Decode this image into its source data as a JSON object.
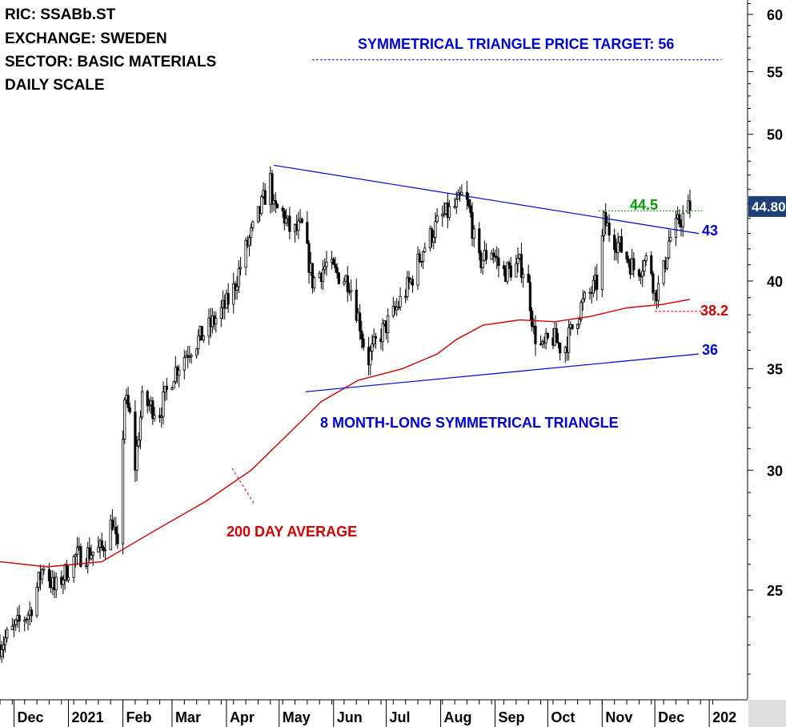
{
  "header": {
    "ric": "RIC: SSABb.ST",
    "exchange": "EXCHANGE: SWEDEN",
    "sector": "SECTOR: BASIC MATERIALS",
    "scale": "DAILY SCALE"
  },
  "annotations": {
    "price_target": "SYMMETRICAL TRIANGLE PRICE TARGET: 56",
    "pattern": "8 MONTH-LONG SYMMETRICAL TRIANGLE",
    "ma_label": "200 DAY AVERAGE",
    "level_445": "44.5",
    "level_43": "43",
    "level_382": "38.2",
    "level_36": "36",
    "last_price": "44.80"
  },
  "colors": {
    "price": "#000000",
    "trendline": "#0000cc",
    "moving_average": "#cc0000",
    "target": "#0000cc",
    "resistance": "#009900",
    "badge": "#1f3f77"
  },
  "chart_data": {
    "type": "candlestick",
    "y_scale": "log",
    "ylim": [
      21,
      62
    ],
    "y_ticks": [
      25,
      30,
      35,
      40,
      50,
      55,
      60
    ],
    "x_tick_labels": [
      "Dec",
      "2021",
      "Feb",
      "Mar",
      "Apr",
      "May",
      "Jun",
      "Jul",
      "Aug",
      "Sep",
      "Oct",
      "Nov",
      "Dec",
      "202"
    ],
    "series": [
      {
        "name": "SSABb.ST price",
        "points": [
          [
            "2020-11-23",
            23.0
          ],
          [
            "2020-12-10",
            24.2
          ],
          [
            "2020-12-18",
            26.0
          ],
          [
            "2020-12-24",
            25.0
          ],
          [
            "2021-01-05",
            26.3
          ],
          [
            "2021-01-20",
            26.6
          ],
          [
            "2021-01-26",
            27.8
          ],
          [
            "2021-01-29",
            26.4
          ],
          [
            "2021-02-02",
            33.5
          ],
          [
            "2021-02-06",
            32.2
          ],
          [
            "2021-02-08",
            30.2
          ],
          [
            "2021-02-12",
            33.3
          ],
          [
            "2021-02-22",
            32.8
          ],
          [
            "2021-03-02",
            34.8
          ],
          [
            "2021-03-10",
            36.0
          ],
          [
            "2021-03-20",
            37.0
          ],
          [
            "2021-04-01",
            38.6
          ],
          [
            "2021-04-05",
            39.5
          ],
          [
            "2021-04-12",
            42.0
          ],
          [
            "2021-04-18",
            43.8
          ],
          [
            "2021-04-26",
            46.6
          ],
          [
            "2021-04-28",
            44.5
          ],
          [
            "2021-05-02",
            44.6
          ],
          [
            "2021-05-08",
            43.0
          ],
          [
            "2021-05-14",
            43.4
          ],
          [
            "2021-05-20",
            40.0
          ],
          [
            "2021-05-28",
            41.0
          ],
          [
            "2021-06-02",
            40.5
          ],
          [
            "2021-06-10",
            40.0
          ],
          [
            "2021-06-16",
            37.5
          ],
          [
            "2021-06-20",
            35.3
          ],
          [
            "2021-06-26",
            36.6
          ],
          [
            "2021-07-05",
            38.0
          ],
          [
            "2021-07-15",
            40.0
          ],
          [
            "2021-07-22",
            42.0
          ],
          [
            "2021-08-01",
            44.0
          ],
          [
            "2021-08-10",
            44.8
          ],
          [
            "2021-08-14",
            45.7
          ],
          [
            "2021-08-18",
            44.2
          ],
          [
            "2021-08-22",
            41.0
          ],
          [
            "2021-08-30",
            42.0
          ],
          [
            "2021-09-05",
            40.5
          ],
          [
            "2021-09-15",
            41.0
          ],
          [
            "2021-09-19",
            40.5
          ],
          [
            "2021-09-23",
            37.0
          ],
          [
            "2021-09-28",
            36.0
          ],
          [
            "2021-10-03",
            36.8
          ],
          [
            "2021-10-10",
            36.0
          ],
          [
            "2021-10-20",
            38.5
          ],
          [
            "2021-10-30",
            40.0
          ],
          [
            "2021-11-02",
            43.8
          ],
          [
            "2021-11-06",
            43.0
          ],
          [
            "2021-11-12",
            42.0
          ],
          [
            "2021-11-20",
            40.6
          ],
          [
            "2021-11-28",
            41.5
          ],
          [
            "2021-12-01",
            39.2
          ],
          [
            "2021-12-05",
            40.0
          ],
          [
            "2021-12-09",
            42.5
          ],
          [
            "2021-12-15",
            43.8
          ],
          [
            "2021-12-21",
            44.8
          ]
        ]
      },
      {
        "name": "200 DAY AVERAGE",
        "points": [
          [
            "2020-11-23",
            26.1
          ],
          [
            "2020-12-20",
            25.9
          ],
          [
            "2021-01-20",
            26.1
          ],
          [
            "2021-02-20",
            27.4
          ],
          [
            "2021-03-20",
            28.6
          ],
          [
            "2021-04-15",
            30.0
          ],
          [
            "2021-05-05",
            31.6
          ],
          [
            "2021-05-25",
            33.3
          ],
          [
            "2021-06-15",
            34.4
          ],
          [
            "2021-07-10",
            35.0
          ],
          [
            "2021-07-30",
            35.8
          ],
          [
            "2021-08-10",
            36.6
          ],
          [
            "2021-08-25",
            37.4
          ],
          [
            "2021-09-15",
            37.7
          ],
          [
            "2021-10-05",
            37.6
          ],
          [
            "2021-10-25",
            37.9
          ],
          [
            "2021-11-15",
            38.4
          ],
          [
            "2021-12-05",
            38.6
          ],
          [
            "2021-12-21",
            38.9
          ]
        ]
      },
      {
        "name": "upper trendline",
        "points": [
          [
            "2021-04-28",
            47.7
          ],
          [
            "2021-12-26",
            43.0
          ]
        ]
      },
      {
        "name": "lower trendline",
        "points": [
          [
            "2021-05-16",
            33.8
          ],
          [
            "2021-12-26",
            35.8
          ]
        ]
      }
    ],
    "levels": {
      "price_target": 56,
      "resistance": 44.5,
      "upper_trendline_end": 43,
      "support": 38.2,
      "lower_trendline_end": 36,
      "last_price": 44.8
    }
  }
}
